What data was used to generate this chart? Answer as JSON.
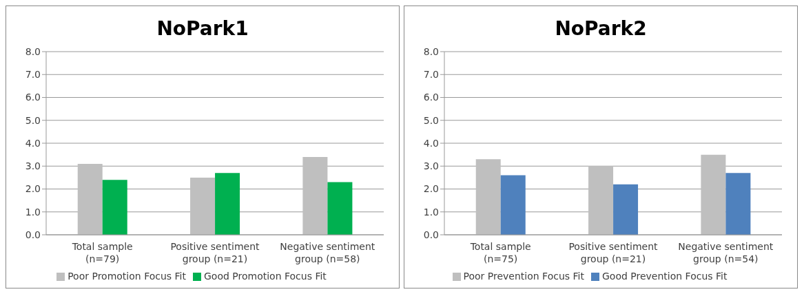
{
  "chart_data": [
    {
      "type": "bar",
      "title": "NoPark1",
      "categories": [
        "Total sample\n(n=79)",
        "Positive sentiment\ngroup (n=21)",
        "Negative sentiment\ngroup (n=58)"
      ],
      "series": [
        {
          "name": "Poor Promotion Focus Fit",
          "color": "#bfbfbf",
          "values": [
            3.1,
            2.5,
            3.4
          ]
        },
        {
          "name": "Good Promotion Focus Fit",
          "color": "#00b050",
          "values": [
            2.4,
            2.7,
            2.3
          ]
        }
      ],
      "ylim": [
        0,
        8
      ],
      "yticks": [
        {
          "value": 0,
          "label": "0.0"
        },
        {
          "value": 1,
          "label": "1.0"
        },
        {
          "value": 2,
          "label": "2.0"
        },
        {
          "value": 3,
          "label": "3.0"
        },
        {
          "value": 4,
          "label": "4.0"
        },
        {
          "value": 5,
          "label": "5.0"
        },
        {
          "value": 6,
          "label": "6.0"
        },
        {
          "value": 7,
          "label": "7.0"
        },
        {
          "value": 8,
          "label": "8.0"
        }
      ],
      "grid": "y",
      "legend": "bottom"
    },
    {
      "type": "bar",
      "title": "NoPark2",
      "categories": [
        "Total sample\n(n=75)",
        "Positive sentiment\ngroup (n=21)",
        "Negative sentiment\ngroup (n=54)"
      ],
      "series": [
        {
          "name": "Poor Prevention Focus Fit",
          "color": "#bfbfbf",
          "values": [
            3.3,
            3.0,
            3.5
          ]
        },
        {
          "name": "Good Prevention Focus Fit",
          "color": "#4f81bd",
          "values": [
            2.6,
            2.2,
            2.7
          ]
        }
      ],
      "ylim": [
        0,
        8
      ],
      "yticks": [
        {
          "value": 0,
          "label": "0.0"
        },
        {
          "value": 1,
          "label": "1.0"
        },
        {
          "value": 2,
          "label": "2.0"
        },
        {
          "value": 3,
          "label": "3.0"
        },
        {
          "value": 4,
          "label": "4.0"
        },
        {
          "value": 5,
          "label": "5.0"
        },
        {
          "value": 6,
          "label": "6.0"
        },
        {
          "value": 7,
          "label": "7.0"
        },
        {
          "value": 8,
          "label": "8.0"
        }
      ],
      "grid": "y",
      "legend": "bottom"
    }
  ]
}
